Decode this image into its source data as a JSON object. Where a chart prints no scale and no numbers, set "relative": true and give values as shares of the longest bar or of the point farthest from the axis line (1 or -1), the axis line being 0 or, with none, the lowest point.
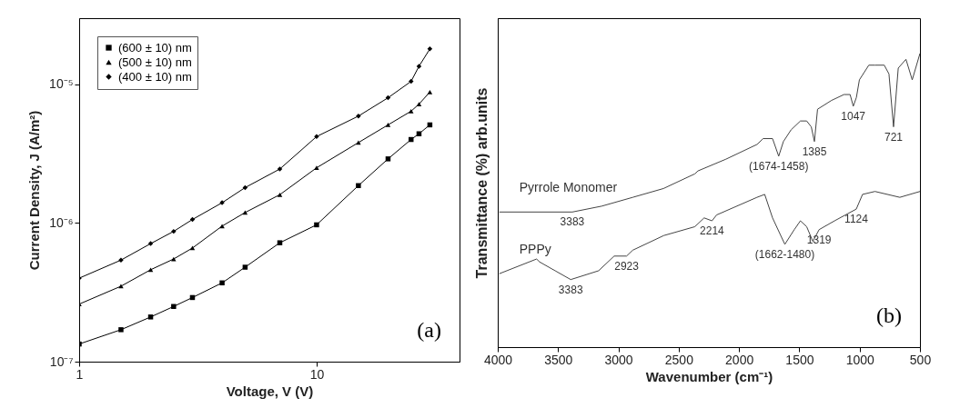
{
  "chart_data": [
    {
      "type": "line",
      "xlabel": "Voltage, V (V)",
      "ylabel": "Current Density, J (A/m²)",
      "log": "xy",
      "grid": false,
      "legend": "top left",
      "line_style": "solid",
      "x": [
        1,
        1.5,
        2,
        2.5,
        3,
        4,
        5,
        7,
        10,
        15,
        20,
        25,
        27,
        30
      ],
      "xlim": [
        1,
        40
      ],
      "xticks": [
        1,
        10
      ],
      "ylim": [
        1e-07,
        3e-05
      ],
      "yticks": [
        {
          "value": 1e-07,
          "label": "10⁻⁷"
        },
        {
          "value": 1e-06,
          "label": "10⁻⁶"
        },
        {
          "value": 1e-05,
          "label": "10⁻⁵"
        }
      ],
      "series": [
        {
          "name": "(600 ± 10) nm",
          "color": "#000000",
          "marker": "square",
          "values": [
            1.34e-07,
            1.7e-07,
            2.1e-07,
            2.5e-07,
            2.9e-07,
            3.7e-07,
            4.8e-07,
            7.2e-07,
            9.7e-07,
            1.86e-06,
            2.9e-06,
            4e-06,
            4.4e-06,
            5.1e-06
          ]
        },
        {
          "name": "(500 ± 10) nm",
          "color": "#000000",
          "marker": "triangle",
          "values": [
            2.6e-07,
            3.5e-07,
            4.6e-07,
            5.5e-07,
            6.6e-07,
            9.5e-07,
            1.19e-06,
            1.6e-06,
            2.5e-06,
            3.8e-06,
            5.1e-06,
            6.4e-06,
            7.2e-06,
            8.8e-06
          ]
        },
        {
          "name": "(400 ± 10) nm",
          "color": "#000000",
          "marker": "diamond",
          "values": [
            4e-07,
            5.4e-07,
            7.1e-07,
            8.7e-07,
            1.06e-06,
            1.4e-06,
            1.8e-06,
            2.45e-06,
            4.2e-06,
            5.9e-06,
            8e-06,
            1.05e-05,
            1.35e-05,
            1.8e-05
          ]
        }
      ],
      "annotations": [
        "(a)"
      ]
    },
    {
      "type": "line",
      "xlabel": "Wavenumber (cm⁻¹)",
      "ylabel": "Transmittance (%) arb.units",
      "relative": true,
      "grid": false,
      "legend": false,
      "tick_labels": "x",
      "xlim": [
        4000,
        500
      ],
      "xticks": [
        4000,
        3500,
        3000,
        2500,
        2000,
        1500,
        1000,
        500
      ],
      "series": [
        {
          "name": "Pyrrole Monomer",
          "color": "#444444",
          "x": [
            3987,
            3653,
            3382,
            3138,
            2881,
            2626,
            2366,
            2340,
            2108,
            1851,
            1800,
            1722,
            1671,
            1632,
            1568,
            1491,
            1439,
            1401,
            1375,
            1349,
            1233,
            1130,
            1079,
            1053,
            1027,
            1002,
            924,
            873,
            796,
            757,
            719,
            680,
            616,
            564,
            500
          ],
          "values": [
            0.46,
            0.46,
            0.46,
            0.48,
            0.51,
            0.54,
            0.59,
            0.6,
            0.64,
            0.69,
            0.71,
            0.71,
            0.65,
            0.7,
            0.74,
            0.77,
            0.77,
            0.75,
            0.7,
            0.81,
            0.84,
            0.86,
            0.86,
            0.82,
            0.85,
            0.91,
            0.96,
            0.96,
            0.96,
            0.93,
            0.75,
            0.95,
            0.98,
            0.91,
            1.0
          ]
        },
        {
          "name": "PPPy",
          "color": "#444444",
          "x": [
            3987,
            3678,
            3653,
            3524,
            3395,
            3164,
            3035,
            2932,
            2881,
            2623,
            2366,
            2289,
            2224,
            2186,
            1851,
            1787,
            1722,
            1620,
            1542,
            1491,
            1439,
            1388,
            1336,
            1208,
            1028,
            976,
            873,
            667,
            500
          ],
          "values": [
            0.25,
            0.3,
            0.29,
            0.26,
            0.23,
            0.26,
            0.31,
            0.31,
            0.33,
            0.38,
            0.41,
            0.44,
            0.43,
            0.45,
            0.51,
            0.52,
            0.44,
            0.35,
            0.4,
            0.43,
            0.41,
            0.36,
            0.4,
            0.43,
            0.47,
            0.52,
            0.53,
            0.51,
            0.53
          ]
        }
      ],
      "annotations": [
        {
          "text": "1047",
          "x": 1053,
          "y": 0.82
        },
        {
          "text": "721",
          "x": 719,
          "y": 0.75
        },
        {
          "text": "1385",
          "x": 1375,
          "y": 0.7
        },
        {
          "text": "(1674-1458)",
          "x": 1671,
          "y": 0.65
        },
        {
          "text": "3383",
          "x": 3382,
          "y": 0.46
        },
        {
          "text": "2214",
          "x": 2224,
          "y": 0.43
        },
        {
          "text": "(1662-1480)",
          "x": 1620,
          "y": 0.35
        },
        {
          "text": "1319",
          "x": 1336,
          "y": 0.4
        },
        {
          "text": "1124",
          "x": 1028,
          "y": 0.47
        },
        {
          "text": "2923",
          "x": 2932,
          "y": 0.31
        },
        {
          "text": "3383",
          "x": 3395,
          "y": 0.23
        },
        "(b)"
      ]
    }
  ]
}
